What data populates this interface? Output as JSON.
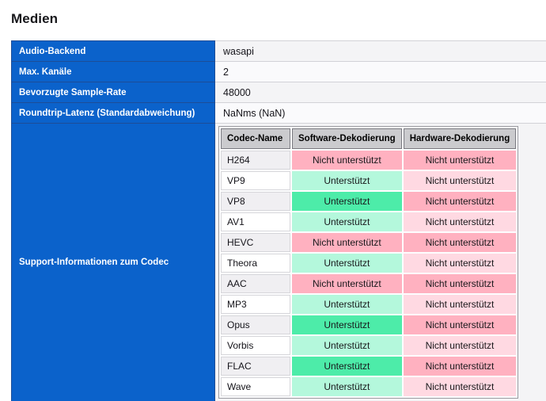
{
  "colors": {
    "accent_blue": "#0b62cb",
    "supported_strong": "#4deca9",
    "supported_soft": "#b4f8dc",
    "unsupported_strong": "#ffb1c0",
    "unsupported_soft": "#ffd9e2"
  },
  "page": {
    "title": "Medien"
  },
  "info_table": {
    "rows": [
      {
        "label": "Audio-Backend",
        "value": "wasapi"
      },
      {
        "label": "Max. Kanäle",
        "value": "2"
      },
      {
        "label": "Bevorzugte Sample-Rate",
        "value": "48000"
      },
      {
        "label": "Roundtrip-Latenz (Standardabweichung)",
        "value": "NaNms (NaN)"
      },
      {
        "label": "Support-Informationen zum Codec",
        "value": ""
      }
    ]
  },
  "codec_table": {
    "headers": [
      "Codec-Name",
      "Software-Dekodierung",
      "Hardware-Dekodierung"
    ],
    "status_labels": {
      "supported": "Unterstützt",
      "unsupported": "Nicht unterstützt"
    },
    "rows": [
      {
        "codec": "H264",
        "software": "unsupported",
        "hardware": "unsupported"
      },
      {
        "codec": "VP9",
        "software": "supported",
        "hardware": "unsupported"
      },
      {
        "codec": "VP8",
        "software": "supported",
        "hardware": "unsupported"
      },
      {
        "codec": "AV1",
        "software": "supported",
        "hardware": "unsupported"
      },
      {
        "codec": "HEVC",
        "software": "unsupported",
        "hardware": "unsupported"
      },
      {
        "codec": "Theora",
        "software": "supported",
        "hardware": "unsupported"
      },
      {
        "codec": "AAC",
        "software": "unsupported",
        "hardware": "unsupported"
      },
      {
        "codec": "MP3",
        "software": "supported",
        "hardware": "unsupported"
      },
      {
        "codec": "Opus",
        "software": "supported",
        "hardware": "unsupported"
      },
      {
        "codec": "Vorbis",
        "software": "supported",
        "hardware": "unsupported"
      },
      {
        "codec": "FLAC",
        "software": "supported",
        "hardware": "unsupported"
      },
      {
        "codec": "Wave",
        "software": "supported",
        "hardware": "unsupported"
      }
    ]
  }
}
